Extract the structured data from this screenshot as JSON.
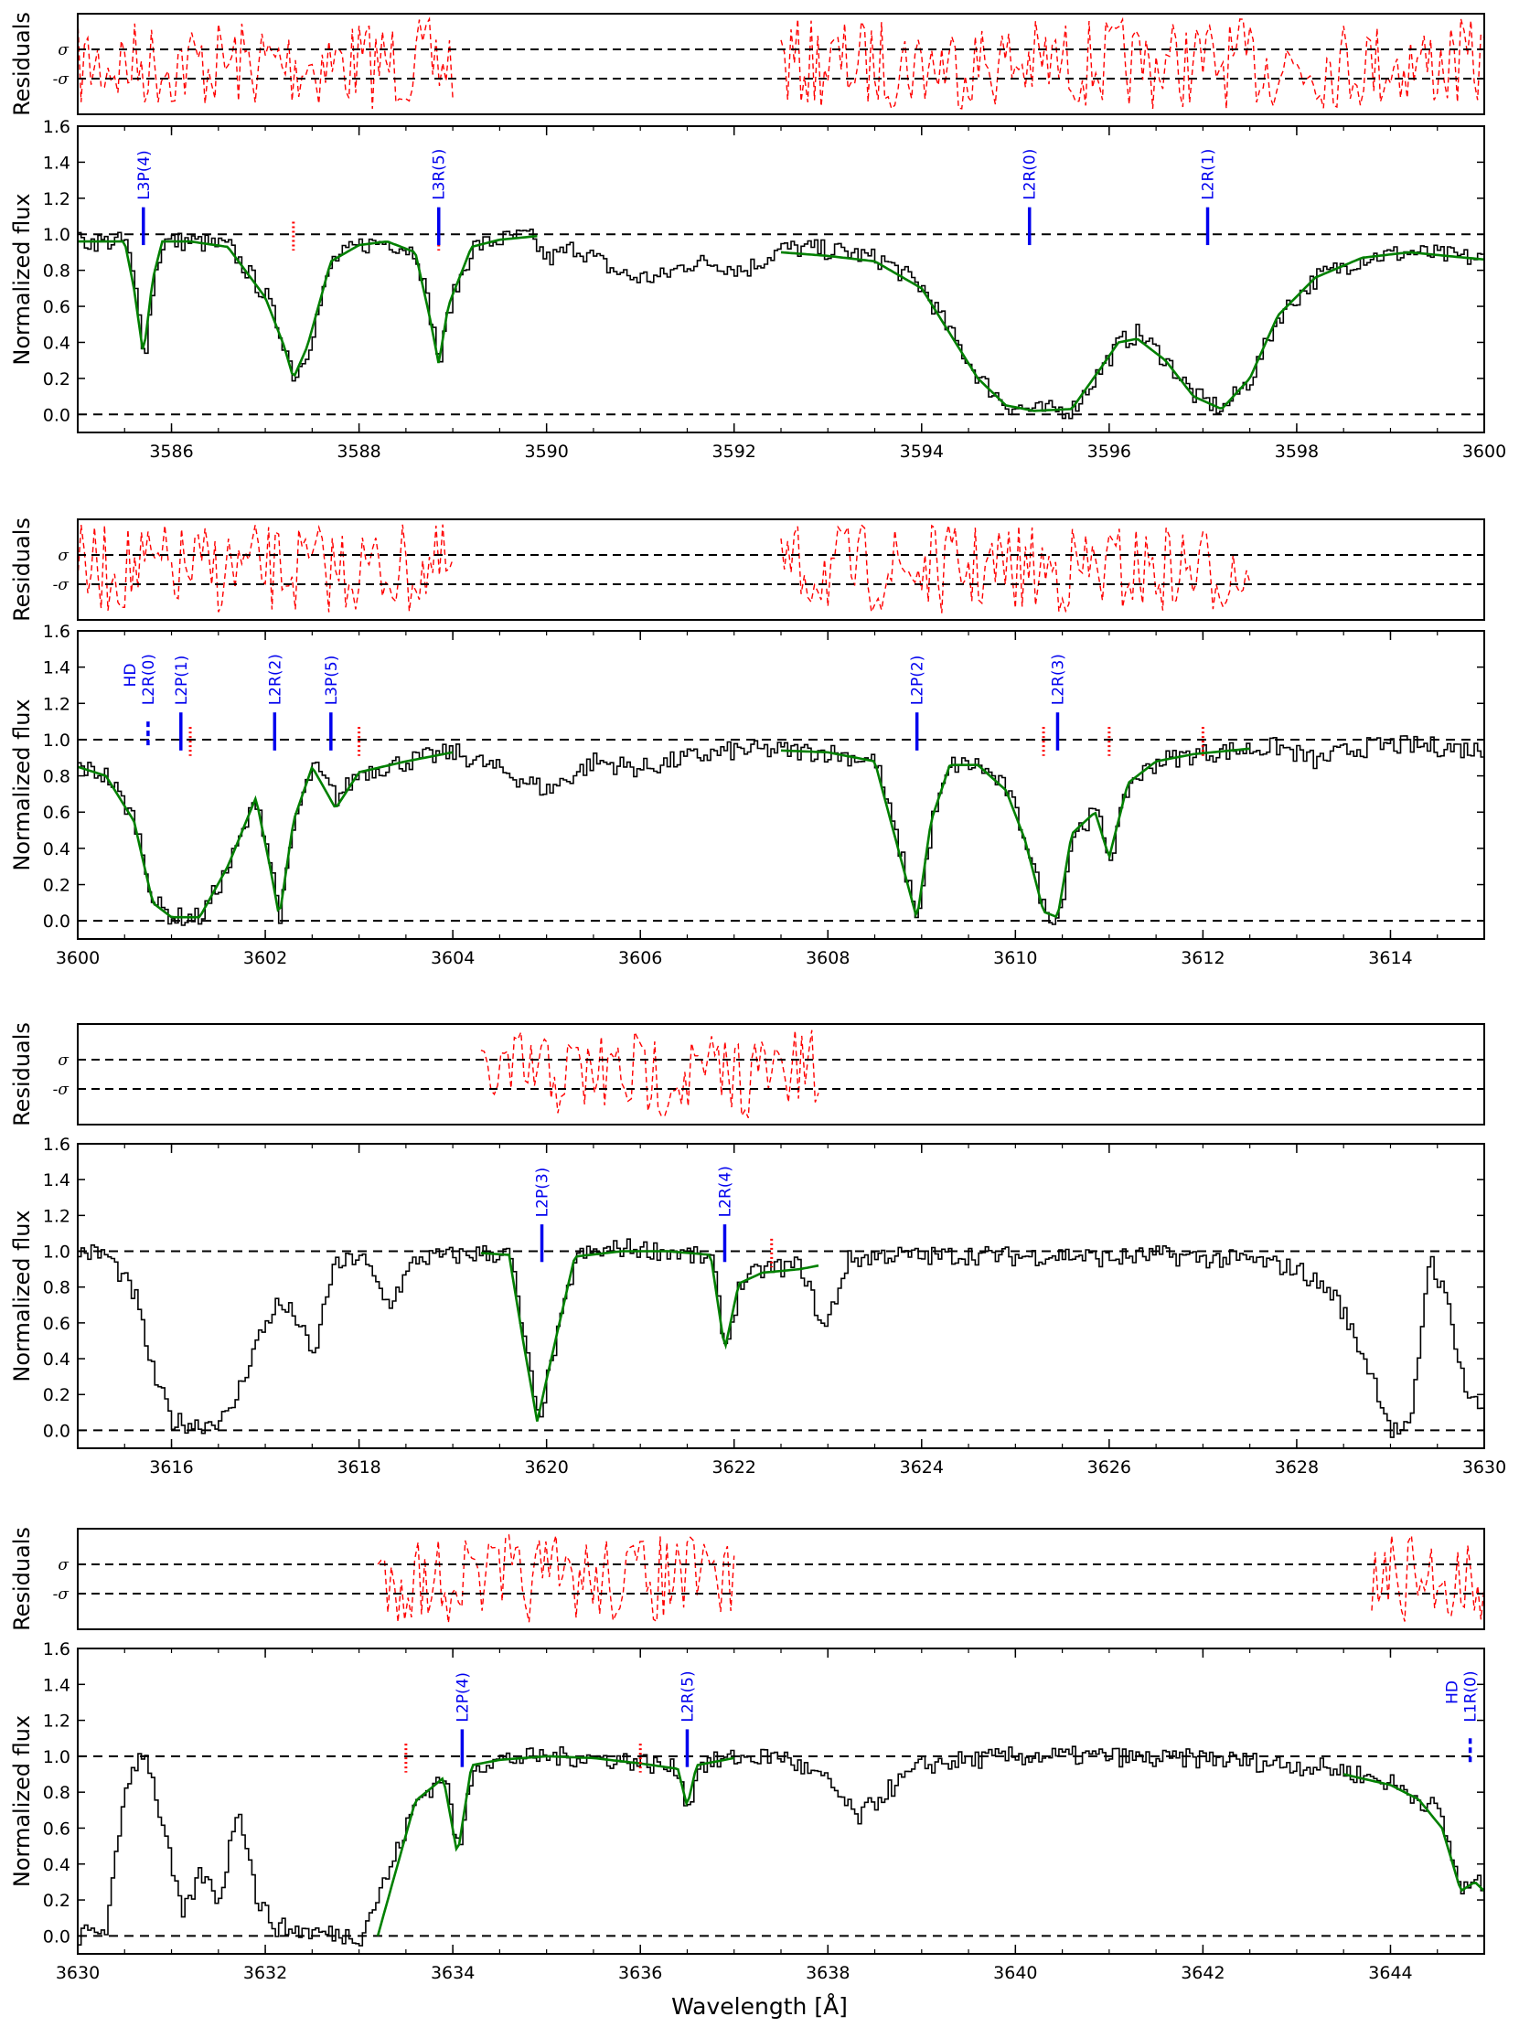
{
  "figure": {
    "xlabel": "Wavelength [Å]",
    "colors": {
      "data": "#000000",
      "model": "#008000",
      "residual": "#ff0000",
      "marker": "#0000ee",
      "dashed": "#000000"
    }
  },
  "chart_data": [
    {
      "type": "line",
      "panel": 1,
      "xlim": [
        3585,
        3600
      ],
      "ylim": [
        -0.1,
        1.6
      ],
      "xticks": [
        3586,
        3588,
        3590,
        3592,
        3594,
        3596,
        3598,
        3600
      ],
      "yticks": [
        0.0,
        0.2,
        0.4,
        0.6,
        0.8,
        1.0,
        1.2,
        1.4,
        1.6
      ],
      "ylabel": "Normalized flux",
      "residuals_ylabel": "Residuals",
      "residual_ticks": [
        "σ",
        "-σ"
      ],
      "reference_lines": [
        0.0,
        1.0
      ],
      "residual_ranges": [
        [
          3585.0,
          3589.0
        ],
        [
          3592.5,
          3600.0
        ]
      ],
      "series": [
        {
          "role": "data",
          "x": [
            3585.0,
            3585.5,
            3585.6,
            3585.7,
            3585.8,
            3585.9,
            3586.2,
            3586.6,
            3587.0,
            3587.2,
            3587.3,
            3587.45,
            3587.7,
            3588.0,
            3588.3,
            3588.6,
            3588.75,
            3588.85,
            3588.95,
            3589.2,
            3589.5,
            3589.8,
            3590.0,
            3590.3,
            3590.7,
            3590.9,
            3591.2,
            3591.5,
            3591.8,
            3592.1,
            3592.5,
            3592.8,
            3593.2,
            3593.6,
            3594.0,
            3594.3,
            3594.6,
            3594.9,
            3595.2,
            3595.6,
            3595.9,
            3596.1,
            3596.3,
            3596.6,
            3596.9,
            3597.2,
            3597.5,
            3597.8,
            3598.2,
            3598.7,
            3599.2,
            3600.0
          ],
          "y": [
            0.96,
            0.96,
            0.7,
            0.33,
            0.75,
            0.96,
            0.96,
            0.93,
            0.65,
            0.38,
            0.2,
            0.38,
            0.85,
            0.94,
            0.96,
            0.9,
            0.55,
            0.28,
            0.6,
            0.93,
            0.97,
            0.99,
            0.86,
            0.93,
            0.8,
            0.76,
            0.76,
            0.84,
            0.84,
            0.8,
            0.92,
            0.92,
            0.9,
            0.85,
            0.7,
            0.45,
            0.2,
            0.05,
            0.02,
            0.03,
            0.25,
            0.4,
            0.45,
            0.3,
            0.1,
            0.03,
            0.2,
            0.55,
            0.76,
            0.87,
            0.9,
            0.86
          ]
        },
        {
          "role": "model",
          "x": [
            3585.0,
            3585.5,
            3585.6,
            3585.7,
            3585.8,
            3585.9,
            3586.2,
            3586.6,
            3587.0,
            3587.2,
            3587.3,
            3587.45,
            3587.7,
            3588.0,
            3588.3,
            3588.6,
            3588.75,
            3588.85,
            3588.95,
            3589.2,
            3589.5,
            3589.9,
            3592.5,
            3593.0,
            3593.5,
            3594.0,
            3594.3,
            3594.6,
            3594.9,
            3595.2,
            3595.6,
            3595.9,
            3596.1,
            3596.3,
            3596.6,
            3596.9,
            3597.2,
            3597.5,
            3597.8,
            3598.2,
            3598.7,
            3599.2,
            3600.0
          ],
          "y": [
            0.96,
            0.96,
            0.7,
            0.33,
            0.75,
            0.96,
            0.96,
            0.93,
            0.65,
            0.38,
            0.2,
            0.38,
            0.85,
            0.94,
            0.96,
            0.9,
            0.55,
            0.28,
            0.6,
            0.93,
            0.97,
            0.99,
            0.9,
            0.88,
            0.85,
            0.7,
            0.45,
            0.2,
            0.05,
            0.02,
            0.03,
            0.25,
            0.4,
            0.42,
            0.3,
            0.1,
            0.03,
            0.2,
            0.55,
            0.76,
            0.87,
            0.9,
            0.86
          ]
        }
      ],
      "markers": [
        {
          "label": "L3P(4)",
          "x": 3585.7
        },
        {
          "label": "L3R(5)",
          "x": 3588.85
        },
        {
          "label": "L2R(0)",
          "x": 3595.15
        },
        {
          "label": "L2R(1)",
          "x": 3597.05
        }
      ],
      "dotted_markers": [
        3587.3,
        3588.85
      ]
    },
    {
      "type": "line",
      "panel": 2,
      "xlim": [
        3600,
        3615
      ],
      "ylim": [
        -0.1,
        1.6
      ],
      "xticks": [
        3600,
        3602,
        3604,
        3606,
        3608,
        3610,
        3612,
        3614
      ],
      "yticks": [
        0.0,
        0.2,
        0.4,
        0.6,
        0.8,
        1.0,
        1.2,
        1.4,
        1.6
      ],
      "ylabel": "Normalized flux",
      "residuals_ylabel": "Residuals",
      "residual_ticks": [
        "σ",
        "-σ"
      ],
      "reference_lines": [
        0.0,
        1.0
      ],
      "residual_ranges": [
        [
          3600.0,
          3604.0
        ],
        [
          3607.5,
          3612.5
        ]
      ],
      "series": [
        {
          "role": "data",
          "x": [
            3600.0,
            3600.3,
            3600.6,
            3600.8,
            3601.0,
            3601.3,
            3601.6,
            3601.9,
            3602.05,
            3602.15,
            3602.3,
            3602.5,
            3602.75,
            3603.0,
            3603.5,
            3604.0,
            3604.5,
            3605.0,
            3605.5,
            3606.0,
            3606.5,
            3607.0,
            3607.5,
            3608.0,
            3608.5,
            3608.8,
            3608.95,
            3609.1,
            3609.3,
            3609.6,
            3609.9,
            3610.1,
            3610.3,
            3610.45,
            3610.6,
            3610.85,
            3611.0,
            3611.2,
            3611.5,
            3611.9,
            3612.3,
            3612.8,
            3613.2,
            3613.6,
            3614.0,
            3614.5,
            3615.0
          ],
          "y": [
            0.85,
            0.8,
            0.55,
            0.1,
            0.02,
            0.02,
            0.3,
            0.68,
            0.3,
            0.02,
            0.55,
            0.85,
            0.68,
            0.82,
            0.88,
            0.93,
            0.83,
            0.72,
            0.88,
            0.84,
            0.9,
            0.94,
            0.94,
            0.93,
            0.88,
            0.3,
            0.01,
            0.55,
            0.86,
            0.86,
            0.72,
            0.45,
            0.05,
            0.02,
            0.48,
            0.6,
            0.35,
            0.76,
            0.88,
            0.92,
            0.94,
            0.96,
            0.88,
            0.95,
            0.97,
            0.96,
            0.94
          ]
        },
        {
          "role": "model",
          "x": [
            3600.0,
            3600.3,
            3600.6,
            3600.8,
            3601.0,
            3601.3,
            3601.6,
            3601.9,
            3602.05,
            3602.15,
            3602.3,
            3602.5,
            3602.75,
            3603.0,
            3603.5,
            3604.0,
            3607.5,
            3608.0,
            3608.5,
            3608.8,
            3608.95,
            3609.1,
            3609.3,
            3609.6,
            3609.9,
            3610.1,
            3610.3,
            3610.45,
            3610.6,
            3610.85,
            3611.0,
            3611.2,
            3611.5,
            3611.9,
            3612.3,
            3612.5
          ],
          "y": [
            0.85,
            0.8,
            0.55,
            0.1,
            0.02,
            0.02,
            0.3,
            0.68,
            0.3,
            0.02,
            0.55,
            0.85,
            0.62,
            0.82,
            0.88,
            0.93,
            0.94,
            0.93,
            0.88,
            0.3,
            0.01,
            0.55,
            0.86,
            0.86,
            0.72,
            0.45,
            0.05,
            0.02,
            0.48,
            0.6,
            0.35,
            0.76,
            0.88,
            0.92,
            0.94,
            0.95
          ]
        }
      ],
      "markers": [
        {
          "label": "L2R(0)",
          "x": 3600.75,
          "short": true
        },
        {
          "label": "L2P(1)",
          "x": 3601.1
        },
        {
          "label": "L2R(2)",
          "x": 3602.1
        },
        {
          "label": "L3P(5)",
          "x": 3602.7
        },
        {
          "label": "L2P(2)",
          "x": 3608.95
        },
        {
          "label": "L2R(3)",
          "x": 3610.45
        }
      ],
      "marker_prefix": {
        "label": "HD",
        "x": 3600.75
      },
      "dotted_markers": [
        3601.2,
        3603.0,
        3610.3,
        3611.0,
        3612.0
      ]
    },
    {
      "type": "line",
      "panel": 3,
      "xlim": [
        3615,
        3630
      ],
      "ylim": [
        -0.1,
        1.6
      ],
      "xticks": [
        3616,
        3618,
        3620,
        3622,
        3624,
        3626,
        3628,
        3630
      ],
      "yticks": [
        0.0,
        0.2,
        0.4,
        0.6,
        0.8,
        1.0,
        1.2,
        1.4,
        1.6
      ],
      "ylabel": "Normalized flux",
      "residuals_ylabel": "Residuals",
      "residual_ticks": [
        "σ",
        "-σ"
      ],
      "reference_lines": [
        0.0,
        1.0
      ],
      "residual_ranges": [
        [
          3619.3,
          3622.9
        ]
      ],
      "series": [
        {
          "role": "data",
          "x": [
            3615.0,
            3615.3,
            3615.6,
            3615.8,
            3616.0,
            3616.3,
            3616.6,
            3616.9,
            3617.1,
            3617.3,
            3617.5,
            3617.7,
            3618.0,
            3618.3,
            3618.6,
            3618.9,
            3619.3,
            3619.6,
            3619.75,
            3619.9,
            3620.05,
            3620.3,
            3620.8,
            3621.3,
            3621.75,
            3621.9,
            3622.05,
            3622.3,
            3622.7,
            3622.95,
            3623.2,
            3623.6,
            3624.0,
            3624.5,
            3625.0,
            3625.5,
            3626.0,
            3626.5,
            3627.0,
            3627.5,
            3628.0,
            3628.4,
            3628.8,
            3629.0,
            3629.2,
            3629.4,
            3629.6,
            3629.8,
            3630.0
          ],
          "y": [
            1.0,
            0.98,
            0.75,
            0.3,
            0.05,
            0.03,
            0.08,
            0.5,
            0.7,
            0.65,
            0.4,
            0.9,
            0.98,
            0.7,
            0.96,
            0.97,
            0.99,
            0.98,
            0.5,
            0.05,
            0.4,
            0.97,
            1.02,
            1.0,
            0.95,
            0.45,
            0.82,
            0.9,
            0.92,
            0.55,
            0.95,
            0.98,
            0.97,
            0.98,
            0.97,
            0.98,
            0.96,
            0.98,
            0.96,
            0.95,
            0.9,
            0.75,
            0.3,
            0.0,
            0.0,
            0.98,
            0.7,
            0.2,
            0.1
          ]
        },
        {
          "role": "model",
          "x": [
            3619.3,
            3619.6,
            3619.75,
            3619.9,
            3620.05,
            3620.3,
            3620.8,
            3621.3,
            3621.75,
            3621.9,
            3622.05,
            3622.3,
            3622.7,
            3622.9
          ],
          "y": [
            0.99,
            0.98,
            0.5,
            0.05,
            0.4,
            0.97,
            1.0,
            1.0,
            0.98,
            0.45,
            0.82,
            0.88,
            0.9,
            0.92
          ]
        }
      ],
      "markers": [
        {
          "label": "L2P(3)",
          "x": 3619.95
        },
        {
          "label": "L2R(4)",
          "x": 3621.9
        }
      ],
      "dotted_markers": [
        3622.4
      ]
    },
    {
      "type": "line",
      "panel": 4,
      "xlim": [
        3630,
        3645
      ],
      "ylim": [
        -0.1,
        1.6
      ],
      "xticks": [
        3630,
        3632,
        3634,
        3636,
        3638,
        3640,
        3642,
        3644
      ],
      "yticks": [
        0.0,
        0.2,
        0.4,
        0.6,
        0.8,
        1.0,
        1.2,
        1.4,
        1.6
      ],
      "ylabel": "Normalized flux",
      "residuals_ylabel": "Residuals",
      "residual_ticks": [
        "σ",
        "-σ"
      ],
      "reference_lines": [
        0.0,
        1.0
      ],
      "residual_ranges": [
        [
          3633.2,
          3637.0
        ],
        [
          3643.8,
          3645.0
        ]
      ],
      "series": [
        {
          "role": "data",
          "x": [
            3630.0,
            3630.3,
            3630.5,
            3630.7,
            3630.9,
            3631.1,
            3631.3,
            3631.5,
            3631.7,
            3631.9,
            3632.1,
            3632.5,
            3633.0,
            3633.3,
            3633.6,
            3633.9,
            3634.05,
            3634.2,
            3634.5,
            3635.0,
            3635.5,
            3636.0,
            3636.4,
            3636.5,
            3636.6,
            3637.0,
            3637.5,
            3638.0,
            3638.3,
            3638.6,
            3639.0,
            3639.5,
            3640.0,
            3640.5,
            3641.0,
            3641.5,
            3642.0,
            3642.5,
            3643.0,
            3643.5,
            3644.0,
            3644.5,
            3644.75,
            3644.9,
            3645.0
          ],
          "y": [
            0.0,
            0.05,
            0.85,
            1.05,
            0.6,
            0.1,
            0.35,
            0.2,
            0.75,
            0.2,
            0.05,
            0.02,
            0.0,
            0.35,
            0.75,
            0.9,
            0.45,
            0.95,
            0.98,
            1.0,
            0.99,
            0.97,
            0.92,
            0.7,
            0.95,
            0.99,
            1.0,
            0.85,
            0.65,
            0.8,
            0.95,
            0.98,
            1.0,
            1.0,
            1.0,
            0.98,
            0.99,
            0.97,
            0.95,
            0.92,
            0.85,
            0.7,
            0.25,
            0.3,
            0.25
          ]
        },
        {
          "role": "model",
          "x": [
            3633.2,
            3633.6,
            3633.9,
            3634.05,
            3634.2,
            3634.5,
            3635.0,
            3635.5,
            3636.0,
            3636.4,
            3636.5,
            3636.6,
            3637.0,
            3643.5,
            3644.0,
            3644.3,
            3644.55,
            3644.75,
            3644.9,
            3645.0
          ],
          "y": [
            0.0,
            0.75,
            0.88,
            0.45,
            0.95,
            0.98,
            1.0,
            0.99,
            0.96,
            0.93,
            0.72,
            0.95,
            0.99,
            0.9,
            0.84,
            0.76,
            0.6,
            0.25,
            0.3,
            0.25
          ]
        }
      ],
      "markers": [
        {
          "label": "L2P(4)",
          "x": 3634.1
        },
        {
          "label": "L2R(5)",
          "x": 3636.5
        },
        {
          "label": "L1R(0)",
          "x": 3644.85,
          "short": true
        }
      ],
      "marker_prefix": {
        "label": "HD",
        "x": 3644.85
      },
      "dotted_markers": [
        3633.5,
        3636.0
      ]
    }
  ]
}
